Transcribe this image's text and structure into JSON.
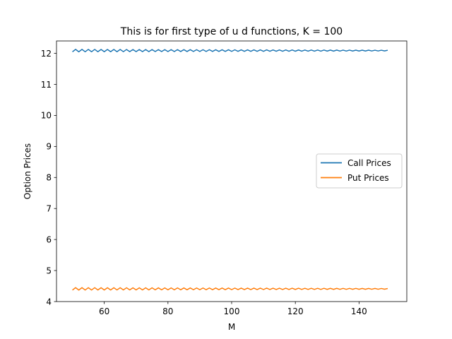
{
  "chart_data": {
    "type": "line",
    "title": "This is for first type of u d functions, K = 100",
    "xlabel": "M",
    "ylabel": "Option Prices",
    "xlim": [
      45,
      155
    ],
    "ylim": [
      4,
      12.4
    ],
    "xticks": [
      60,
      80,
      100,
      120,
      140
    ],
    "yticks": [
      4,
      5,
      6,
      7,
      8,
      9,
      10,
      11,
      12
    ],
    "grid": false,
    "legend_position": "center-right",
    "x_range": [
      50,
      149
    ],
    "series": [
      {
        "name": "Call Prices",
        "color": "#1f77b4",
        "start_value": 12.05,
        "mean": 12.09,
        "oscillation_amplitude_start": 0.04,
        "oscillation_amplitude_end": 0.012,
        "oscillation_pattern": "alternates between consecutive M"
      },
      {
        "name": "Put Prices",
        "color": "#ff7f0e",
        "start_value": 4.37,
        "mean": 4.41,
        "oscillation_amplitude_start": 0.04,
        "oscillation_amplitude_end": 0.012,
        "oscillation_pattern": "alternates between consecutive M"
      }
    ]
  }
}
